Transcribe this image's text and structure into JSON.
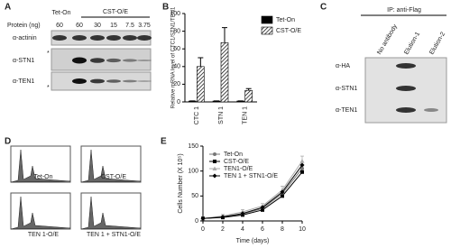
{
  "panel_a": {
    "label": "A",
    "groups": [
      "Tet-On",
      "CST-O/E"
    ],
    "protein_label": "Protein (ng)",
    "lanes": [
      "60",
      "60",
      "30",
      "15",
      "7.5",
      "3.75"
    ],
    "rows": [
      "α-actinin",
      "α-STN1",
      "α-TEN1"
    ],
    "asterisk": "*"
  },
  "panel_c": {
    "label": "C",
    "header": "IP: anti-Flag",
    "lanes": [
      "No antibody",
      "Elution-1",
      "Elution-2"
    ],
    "rows": [
      "α-HA",
      "α-STN1",
      "α-TEN1"
    ]
  },
  "panel_d": {
    "label": "D",
    "plots": [
      "Tet-On",
      "CST-O/E",
      "TEN 1-O/E",
      "TEN 1 + STN1-O/E"
    ]
  },
  "chart_data": [
    {
      "type": "bar",
      "label": "B",
      "ylabel": "Relative mRNA level of CTC1/STN1/TEN1",
      "categories": [
        "CTC 1",
        "STN 1",
        "TEN 1"
      ],
      "series": [
        {
          "name": "Tet-On",
          "color": "#000000",
          "values": [
            1,
            1,
            1
          ],
          "errors": [
            0.2,
            0.2,
            0.2
          ]
        },
        {
          "name": "CST-O/E",
          "color": "hatch",
          "values": [
            40,
            67,
            13
          ],
          "errors": [
            10,
            17,
            2
          ]
        }
      ],
      "ylim": [
        0,
        100
      ],
      "yticks": [
        0,
        20,
        40,
        60,
        80,
        100
      ]
    },
    {
      "type": "line",
      "label": "E",
      "ylabel": "Cells Number (X 10⁵)",
      "xlabel": "Time (days)",
      "x": [
        0,
        2,
        4,
        6,
        8,
        10
      ],
      "series": [
        {
          "name": "Tet-On",
          "color": "#777777",
          "marker": "circle",
          "values": [
            5,
            8,
            14,
            25,
            55,
            105
          ]
        },
        {
          "name": "CST-O/E",
          "color": "#000000",
          "marker": "square",
          "values": [
            5,
            7,
            12,
            22,
            50,
            98
          ]
        },
        {
          "name": "TEN1-O/E",
          "color": "#aaaaaa",
          "marker": "triangle",
          "values": [
            5,
            10,
            18,
            30,
            62,
            120
          ],
          "errors": [
            1,
            3,
            5,
            5,
            8,
            10
          ]
        },
        {
          "name": "TEN 1 + STN1-O/E",
          "color": "#000000",
          "marker": "diamond",
          "values": [
            5,
            8,
            15,
            27,
            58,
            112
          ]
        }
      ],
      "xlim": [
        0,
        10
      ],
      "xticks": [
        0,
        2,
        4,
        6,
        8,
        10
      ],
      "ylim": [
        0,
        150
      ],
      "yticks": [
        0,
        50,
        100,
        150
      ]
    }
  ]
}
